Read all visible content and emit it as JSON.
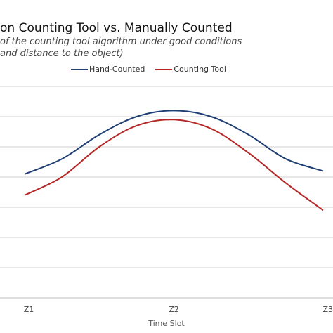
{
  "chart_data": {
    "type": "line",
    "title": "on Counting Tool vs. Manually Counted",
    "subtitle_lines": [
      "of the counting tool algorithm under good conditions",
      "and distance to the object)"
    ],
    "xlabel": "Time Slot",
    "ylabel": "",
    "categories": [
      "Z1",
      "Z2",
      "Z3"
    ],
    "x_range": [
      1,
      3
    ],
    "grid": true,
    "legend_position": "top",
    "series": [
      {
        "name": "Hand-Counted",
        "color": "#1f3f73",
        "x": [
          1,
          1.25,
          1.5,
          1.75,
          2,
          2.25,
          2.5,
          2.75,
          3
        ],
        "values": [
          4.1,
          4.6,
          5.4,
          6.0,
          6.2,
          6.0,
          5.4,
          4.6,
          4.2
        ]
      },
      {
        "name": "Counting Tool",
        "color": "#b52626",
        "x": [
          1,
          1.25,
          1.5,
          1.75,
          2,
          2.25,
          2.5,
          2.75,
          3
        ],
        "values": [
          3.4,
          4.0,
          5.0,
          5.7,
          5.9,
          5.6,
          4.8,
          3.8,
          2.9
        ]
      }
    ],
    "ylim": [
      0,
      7
    ]
  }
}
